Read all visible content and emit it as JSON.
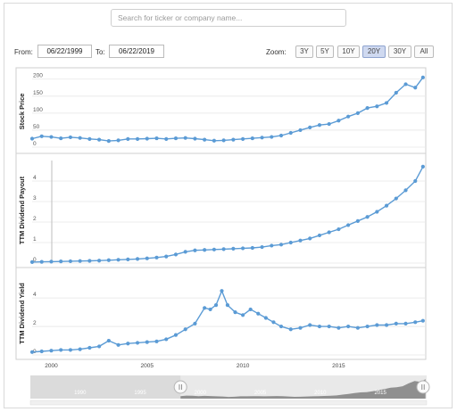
{
  "search": {
    "placeholder": "Search for ticker or company name..."
  },
  "range": {
    "from_label": "From:",
    "from_value": "06/22/1999",
    "to_label": "To:",
    "to_value": "06/22/2019"
  },
  "zoom": {
    "label": "Zoom:",
    "options": [
      "3Y",
      "5Y",
      "10Y",
      "20Y",
      "30Y",
      "All"
    ],
    "active": "20Y"
  },
  "colors": {
    "series": "#5b9bd5",
    "navigator_fill": "#7f7f7f",
    "grid": "#e6e6e6"
  },
  "chart_data": [
    {
      "type": "line",
      "ylabel": "Stock Price",
      "yticks": [
        0,
        50,
        100,
        150,
        200
      ],
      "ylim": [
        0,
        215
      ],
      "x": [
        1999.0,
        1999.5,
        2000.0,
        2000.5,
        2001.0,
        2001.5,
        2002.0,
        2002.5,
        2003.0,
        2003.5,
        2004.0,
        2004.5,
        2005.0,
        2005.5,
        2006.0,
        2006.5,
        2007.0,
        2007.5,
        2008.0,
        2008.5,
        2009.0,
        2009.5,
        2010.0,
        2010.5,
        2011.0,
        2011.5,
        2012.0,
        2012.5,
        2013.0,
        2013.5,
        2014.0,
        2014.5,
        2015.0,
        2015.5,
        2016.0,
        2016.5,
        2017.0,
        2017.5,
        2018.0,
        2018.5,
        2019.0,
        2019.4
      ],
      "values": [
        25,
        32,
        30,
        26,
        29,
        27,
        24,
        22,
        18,
        20,
        24,
        24,
        25,
        26,
        24,
        26,
        27,
        25,
        22,
        19,
        20,
        22,
        24,
        26,
        28,
        30,
        34,
        42,
        50,
        58,
        65,
        68,
        78,
        90,
        100,
        115,
        120,
        130,
        160,
        185,
        175,
        205
      ]
    },
    {
      "type": "line",
      "ylabel": "TTM Dividend Payout",
      "yticks": [
        0,
        1,
        2,
        3,
        4
      ],
      "ylim": [
        0,
        5
      ],
      "x": [
        1999.0,
        1999.5,
        2000.0,
        2000.5,
        2001.0,
        2001.5,
        2002.0,
        2002.5,
        2003.0,
        2003.5,
        2004.0,
        2004.5,
        2005.0,
        2005.5,
        2006.0,
        2006.5,
        2007.0,
        2007.5,
        2008.0,
        2008.5,
        2009.0,
        2009.5,
        2010.0,
        2010.5,
        2011.0,
        2011.5,
        2012.0,
        2012.5,
        2013.0,
        2013.5,
        2014.0,
        2014.5,
        2015.0,
        2015.5,
        2016.0,
        2016.5,
        2017.0,
        2017.5,
        2018.0,
        2018.5,
        2019.0,
        2019.4
      ],
      "values": [
        0.05,
        0.06,
        0.07,
        0.08,
        0.09,
        0.1,
        0.11,
        0.12,
        0.14,
        0.16,
        0.18,
        0.2,
        0.23,
        0.27,
        0.32,
        0.42,
        0.55,
        0.62,
        0.64,
        0.66,
        0.68,
        0.7,
        0.72,
        0.74,
        0.78,
        0.85,
        0.9,
        1.0,
        1.1,
        1.2,
        1.35,
        1.5,
        1.65,
        1.85,
        2.05,
        2.25,
        2.5,
        2.8,
        3.15,
        3.55,
        4.0,
        4.7
      ]
    },
    {
      "type": "line",
      "ylabel": "TTM Dividend Yield",
      "yticks": [
        0,
        2,
        4
      ],
      "ylim": [
        0,
        5.2
      ],
      "x": [
        1999.0,
        1999.5,
        2000.0,
        2000.5,
        2001.0,
        2001.5,
        2002.0,
        2002.5,
        2003.0,
        2003.5,
        2004.0,
        2004.5,
        2005.0,
        2005.5,
        2006.0,
        2006.5,
        2007.0,
        2007.5,
        2008.0,
        2008.3,
        2008.6,
        2008.9,
        2009.2,
        2009.6,
        2010.0,
        2010.4,
        2010.8,
        2011.2,
        2011.6,
        2012.0,
        2012.5,
        2013.0,
        2013.5,
        2014.0,
        2014.5,
        2015.0,
        2015.5,
        2016.0,
        2016.5,
        2017.0,
        2017.5,
        2018.0,
        2018.5,
        2019.0,
        2019.4
      ],
      "values": [
        0.2,
        0.25,
        0.3,
        0.35,
        0.35,
        0.4,
        0.5,
        0.6,
        1.0,
        0.7,
        0.8,
        0.85,
        0.9,
        0.95,
        1.1,
        1.4,
        1.8,
        2.2,
        3.3,
        3.2,
        3.5,
        4.5,
        3.5,
        3.0,
        2.8,
        3.2,
        2.9,
        2.6,
        2.3,
        2.0,
        1.8,
        1.9,
        2.1,
        2.0,
        2.0,
        1.9,
        2.0,
        1.9,
        2.0,
        2.1,
        2.1,
        2.2,
        2.2,
        2.3,
        2.4
      ]
    }
  ],
  "xaxis": {
    "ticks": [
      "2000",
      "2005",
      "2010",
      "2015"
    ],
    "tick_values": [
      2000,
      2005,
      2010,
      2015
    ],
    "xlim": [
      1999.0,
      2019.5
    ]
  },
  "navigator": {
    "labels": [
      "1990",
      "1995",
      "2000",
      "2005",
      "2010",
      "2015"
    ],
    "label_values": [
      1990,
      1995,
      2000,
      2005,
      2010,
      2015
    ],
    "xlim": [
      1986.5,
      2019.5
    ],
    "selection": [
      1999.0,
      2019.5
    ]
  }
}
